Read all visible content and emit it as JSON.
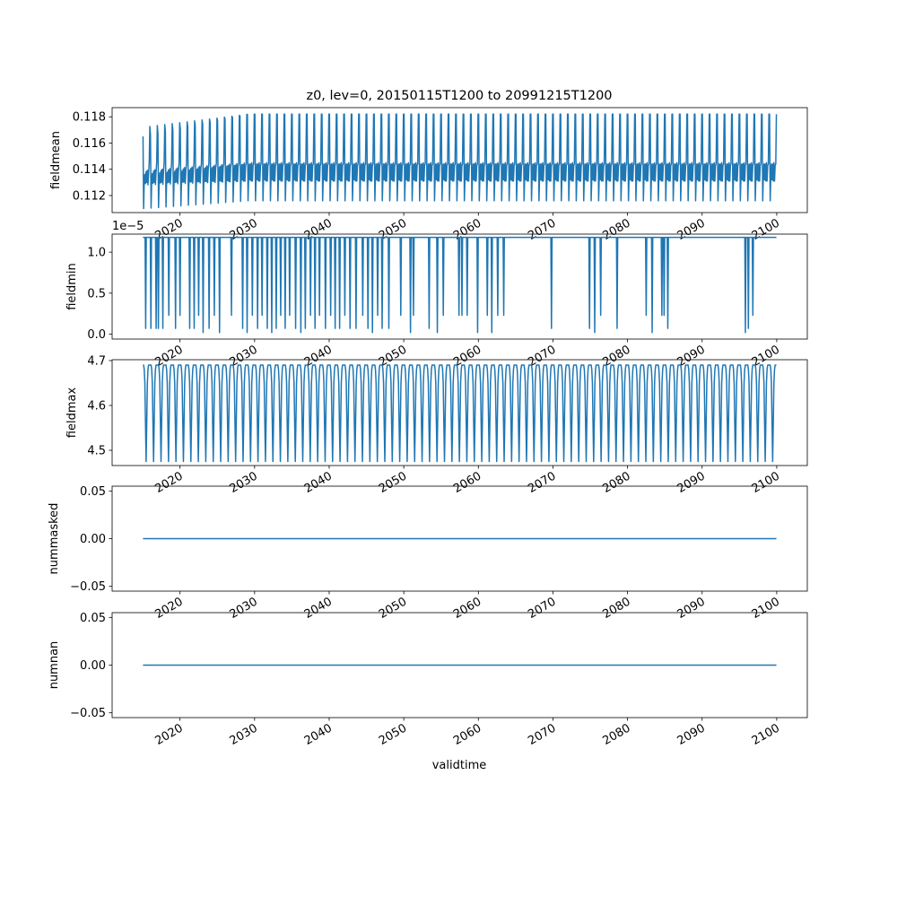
{
  "figure": {
    "title": "z0, lev=0, 20150115T1200 to 20991215T1200",
    "xlabel": "validtime",
    "line_color": "#1f77b4"
  },
  "chart_data": [
    {
      "type": "line",
      "ylabel": "fieldmean",
      "xlim": [
        2010.9,
        2104.1
      ],
      "ylim": [
        0.1107,
        0.1187
      ],
      "yticks": [
        "0.112",
        "0.114",
        "0.116",
        "0.118"
      ],
      "ytick_values": [
        0.112,
        0.114,
        0.116,
        0.118
      ],
      "xticks": [
        "2020",
        "2030",
        "2040",
        "2050",
        "2060",
        "2070",
        "2080",
        "2090",
        "2100"
      ],
      "xtick_values": [
        2020,
        2030,
        2040,
        2050,
        2060,
        2070,
        2080,
        2090,
        2100
      ],
      "x_range": [
        2015.04,
        2099.96
      ],
      "seasonal_cycle": [
        0.1165,
        0.111,
        0.1131,
        0.1136,
        0.1129,
        0.1138,
        0.113,
        0.1139,
        0.1128,
        0.1137,
        0.1145,
        0.1172
      ],
      "seasonal_cycle_final": [
        0.1182,
        0.1116,
        0.1134,
        0.1144,
        0.1132,
        0.1144,
        0.1131,
        0.1145,
        0.1131,
        0.1143,
        0.1144,
        0.1182
      ]
    },
    {
      "type": "line",
      "ylabel": "fieldmin",
      "offset_text": "1e−5",
      "xlim": [
        2010.9,
        2104.1
      ],
      "ylim": [
        -0.06,
        1.22
      ],
      "yticks": [
        "0.0",
        "0.5",
        "1.0"
      ],
      "ytick_values": [
        0.0,
        0.5,
        1.0
      ],
      "xticks": [
        "2020",
        "2030",
        "2040",
        "2050",
        "2060",
        "2070",
        "2080",
        "2090",
        "2100"
      ],
      "xtick_values": [
        2020,
        2030,
        2040,
        2050,
        2060,
        2070,
        2080,
        2090,
        2100
      ],
      "x_range": [
        2015.04,
        2099.96
      ],
      "baseline": 1.18,
      "dips": [
        [
          2015.4,
          0.07
        ],
        [
          2016.1,
          0.07
        ],
        [
          2016.8,
          0.07
        ],
        [
          2017.1,
          0.07
        ],
        [
          2017.7,
          0.07
        ],
        [
          2018.5,
          0.23
        ],
        [
          2019.4,
          0.07
        ],
        [
          2020.0,
          0.23
        ],
        [
          2021.3,
          0.07
        ],
        [
          2021.9,
          0.07
        ],
        [
          2022.5,
          0.23
        ],
        [
          2023.1,
          0.02
        ],
        [
          2023.9,
          0.07
        ],
        [
          2024.6,
          0.23
        ],
        [
          2025.3,
          0.02
        ],
        [
          2026.9,
          0.23
        ],
        [
          2028.4,
          0.07
        ],
        [
          2029.0,
          0.02
        ],
        [
          2029.7,
          0.23
        ],
        [
          2030.4,
          0.07
        ],
        [
          2031.0,
          0.23
        ],
        [
          2031.7,
          0.07
        ],
        [
          2032.3,
          0.02
        ],
        [
          2032.9,
          0.07
        ],
        [
          2033.5,
          0.23
        ],
        [
          2034.1,
          0.07
        ],
        [
          2034.7,
          0.23
        ],
        [
          2035.5,
          0.07
        ],
        [
          2036.2,
          0.02
        ],
        [
          2036.8,
          0.07
        ],
        [
          2037.5,
          0.23
        ],
        [
          2038.1,
          0.07
        ],
        [
          2038.7,
          0.23
        ],
        [
          2039.5,
          0.07
        ],
        [
          2040.2,
          0.23
        ],
        [
          2040.8,
          0.07
        ],
        [
          2041.4,
          0.07
        ],
        [
          2042.1,
          0.23
        ],
        [
          2042.8,
          0.07
        ],
        [
          2043.6,
          0.07
        ],
        [
          2044.5,
          0.23
        ],
        [
          2045.2,
          0.07
        ],
        [
          2045.8,
          0.02
        ],
        [
          2046.5,
          0.23
        ],
        [
          2047.1,
          0.07
        ],
        [
          2048.0,
          0.07
        ],
        [
          2049.6,
          0.23
        ],
        [
          2050.9,
          0.02
        ],
        [
          2051.3,
          0.23
        ],
        [
          2053.4,
          0.07
        ],
        [
          2054.5,
          0.02
        ],
        [
          2055.3,
          0.23
        ],
        [
          2057.4,
          0.23
        ],
        [
          2057.8,
          0.23
        ],
        [
          2058.5,
          0.23
        ],
        [
          2059.9,
          0.02
        ],
        [
          2061.2,
          0.23
        ],
        [
          2061.8,
          0.02
        ],
        [
          2062.6,
          0.23
        ],
        [
          2063.4,
          0.23
        ],
        [
          2069.8,
          0.07
        ],
        [
          2074.9,
          0.07
        ],
        [
          2075.6,
          0.02
        ],
        [
          2076.4,
          0.23
        ],
        [
          2078.6,
          0.07
        ],
        [
          2082.5,
          0.23
        ],
        [
          2083.3,
          0.02
        ],
        [
          2084.6,
          0.23
        ],
        [
          2084.9,
          0.23
        ],
        [
          2085.4,
          0.07
        ],
        [
          2095.8,
          0.02
        ],
        [
          2096.2,
          0.07
        ],
        [
          2096.8,
          0.23
        ]
      ]
    },
    {
      "type": "line",
      "ylabel": "fieldmax",
      "xlim": [
        2010.9,
        2104.1
      ],
      "ylim": [
        4.466,
        4.702
      ],
      "yticks": [
        "4.5",
        "4.6",
        "4.7"
      ],
      "ytick_values": [
        4.5,
        4.6,
        4.7
      ],
      "xticks": [
        "2020",
        "2030",
        "2040",
        "2050",
        "2060",
        "2070",
        "2080",
        "2090",
        "2100"
      ],
      "xtick_values": [
        2020,
        2030,
        2040,
        2050,
        2060,
        2070,
        2080,
        2090,
        2100
      ],
      "x_range": [
        2015.04,
        2099.96
      ],
      "seasonal_cycle": [
        4.69,
        4.69,
        4.68,
        4.65,
        4.56,
        4.475,
        4.56,
        4.65,
        4.68,
        4.69,
        4.69,
        4.69
      ]
    },
    {
      "type": "line",
      "ylabel": "nummasked",
      "xlim": [
        2010.9,
        2104.1
      ],
      "ylim": [
        -0.055,
        0.055
      ],
      "yticks": [
        "−0.05",
        "0.00",
        "0.05"
      ],
      "ytick_values": [
        -0.05,
        0.0,
        0.05
      ],
      "xticks": [
        "2020",
        "2030",
        "2040",
        "2050",
        "2060",
        "2070",
        "2080",
        "2090",
        "2100"
      ],
      "xtick_values": [
        2020,
        2030,
        2040,
        2050,
        2060,
        2070,
        2080,
        2090,
        2100
      ],
      "x": [
        2015.04,
        2099.96
      ],
      "y": [
        0.0,
        0.0
      ]
    },
    {
      "type": "line",
      "ylabel": "numnan",
      "xlim": [
        2010.9,
        2104.1
      ],
      "ylim": [
        -0.055,
        0.055
      ],
      "yticks": [
        "−0.05",
        "0.00",
        "0.05"
      ],
      "ytick_values": [
        -0.05,
        0.0,
        0.05
      ],
      "xticks": [
        "2020",
        "2030",
        "2040",
        "2050",
        "2060",
        "2070",
        "2080",
        "2090",
        "2100"
      ],
      "xtick_values": [
        2020,
        2030,
        2040,
        2050,
        2060,
        2070,
        2080,
        2090,
        2100
      ],
      "x": [
        2015.04,
        2099.96
      ],
      "y": [
        0.0,
        0.0
      ]
    }
  ]
}
